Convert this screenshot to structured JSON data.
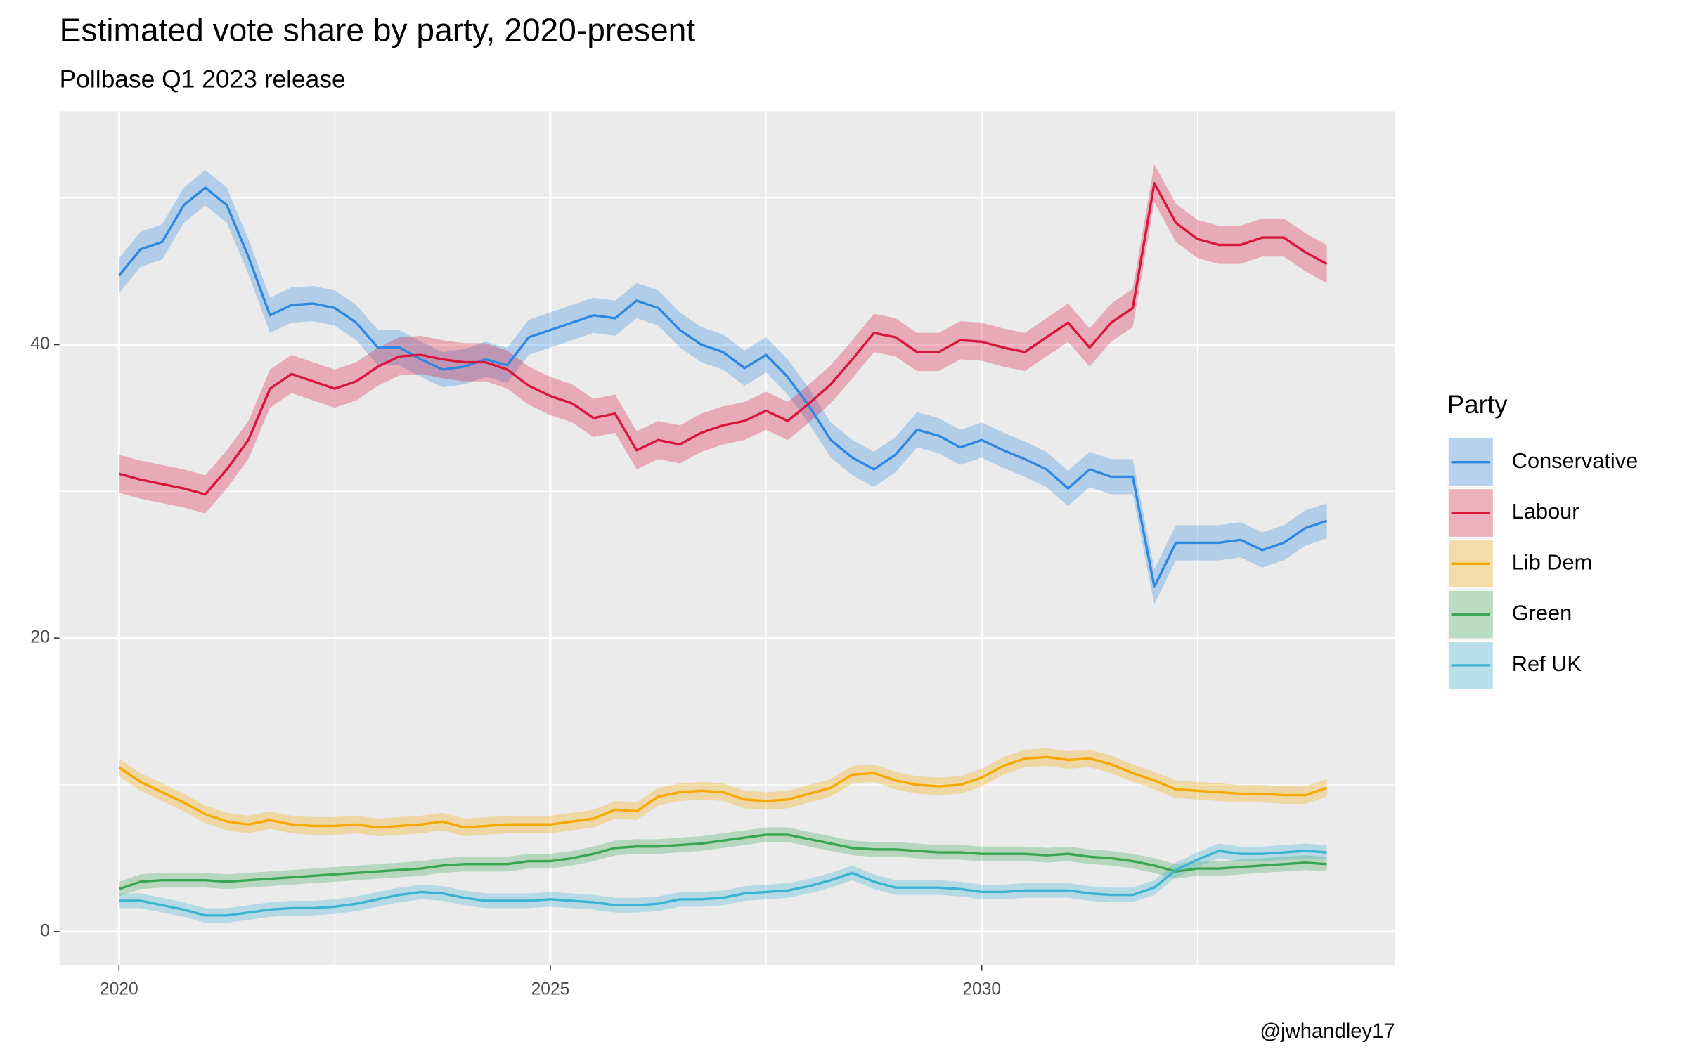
{
  "chart_data": {
    "type": "line",
    "title": "Estimated vote share by party, 2020-present",
    "subtitle": "Pollbase Q1 2023 release",
    "caption": "@jwhandley17",
    "legend_title": "Party",
    "legend": "right",
    "grid": true,
    "xlim": [
      2019.31,
      2034.79
    ],
    "xticks": [
      2020,
      2025,
      2030
    ],
    "ylim": [
      -2.3,
      55.9
    ],
    "yticks": [
      0,
      20,
      40
    ],
    "x": [
      2020,
      2020.25,
      2020.5,
      2020.75,
      2021,
      2021.25,
      2021.5,
      2021.75,
      2022,
      2022.25,
      2022.5,
      2022.75,
      2023,
      2023.25,
      2023.5,
      2023.75,
      2024,
      2024.25,
      2024.5,
      2024.75,
      2025,
      2025.25,
      2025.5,
      2025.75,
      2026,
      2026.25,
      2026.5,
      2026.75,
      2027,
      2027.25,
      2027.5,
      2027.75,
      2028,
      2028.25,
      2028.5,
      2028.75,
      2029,
      2029.25,
      2029.5,
      2029.75,
      2030,
      2030.25,
      2030.5,
      2030.75,
      2031,
      2031.25,
      2031.5,
      2031.75,
      2032,
      2032.25,
      2032.5,
      2032.75,
      2033,
      2033.25,
      2033.5,
      2033.75,
      2034
    ],
    "series": [
      {
        "name": "Conservative",
        "color": "#2e87e0",
        "band": 1.2,
        "values": [
          44.7,
          46.5,
          47,
          49.5,
          50.7,
          49.5,
          46,
          42,
          42.7,
          42.8,
          42.5,
          41.5,
          39.8,
          39.8,
          39,
          38.3,
          38.5,
          39,
          38.6,
          40.5,
          41,
          41.5,
          42,
          41.8,
          43,
          42.5,
          41,
          40,
          39.5,
          38.4,
          39.3,
          37.8,
          35.8,
          33.5,
          32.3,
          31.5,
          32.5,
          34.2,
          33.8,
          33,
          33.5,
          32.8,
          32.2,
          31.5,
          30.2,
          31.5,
          31,
          31,
          23.5,
          26.5,
          26.5,
          26.5,
          26.7,
          26,
          26.5,
          27.5,
          28
        ]
      },
      {
        "name": "Labour",
        "color": "#d9163c",
        "band": 1.3,
        "values": [
          31.2,
          30.8,
          30.5,
          30.2,
          29.8,
          31.5,
          33.5,
          37,
          38,
          37.5,
          37,
          37.5,
          38.5,
          39.2,
          39.3,
          39,
          38.8,
          38.8,
          38.3,
          37.2,
          36.5,
          36,
          35,
          35.3,
          32.8,
          33.5,
          33.2,
          34,
          34.5,
          34.8,
          35.5,
          34.8,
          36,
          37.3,
          39,
          40.8,
          40.5,
          39.5,
          39.5,
          40.3,
          40.2,
          39.8,
          39.5,
          40.5,
          41.5,
          39.8,
          41.5,
          42.5,
          51,
          48.3,
          47.2,
          46.8,
          46.8,
          47.3,
          47.3,
          46.3,
          45.5
        ]
      },
      {
        "name": "Lib Dem",
        "color": "#f5a800",
        "band": 0.6,
        "values": [
          11.2,
          10.2,
          9.5,
          8.8,
          8,
          7.5,
          7.3,
          7.6,
          7.3,
          7.2,
          7.2,
          7.3,
          7.1,
          7.2,
          7.3,
          7.5,
          7.1,
          7.2,
          7.3,
          7.3,
          7.3,
          7.5,
          7.7,
          8.3,
          8.2,
          9.2,
          9.5,
          9.6,
          9.5,
          9,
          8.9,
          9,
          9.4,
          9.8,
          10.7,
          10.8,
          10.3,
          10,
          9.9,
          10,
          10.5,
          11.3,
          11.8,
          11.9,
          11.7,
          11.8,
          11.4,
          10.8,
          10.3,
          9.7,
          9.6,
          9.5,
          9.4,
          9.4,
          9.3,
          9.3,
          9.8
        ]
      },
      {
        "name": "Green",
        "color": "#3aa655",
        "band": 0.5,
        "values": [
          2.9,
          3.4,
          3.5,
          3.5,
          3.5,
          3.4,
          3.5,
          3.6,
          3.7,
          3.8,
          3.9,
          4,
          4.1,
          4.2,
          4.3,
          4.5,
          4.6,
          4.6,
          4.6,
          4.8,
          4.8,
          5,
          5.3,
          5.7,
          5.8,
          5.8,
          5.9,
          6,
          6.2,
          6.4,
          6.6,
          6.6,
          6.3,
          6,
          5.7,
          5.6,
          5.6,
          5.5,
          5.4,
          5.4,
          5.3,
          5.3,
          5.3,
          5.2,
          5.3,
          5.1,
          5,
          4.8,
          4.5,
          4.1,
          4.3,
          4.3,
          4.4,
          4.5,
          4.6,
          4.7,
          4.6
        ]
      },
      {
        "name": "Ref UK",
        "color": "#3bb3d3",
        "band": 0.5,
        "values": [
          2.1,
          2.1,
          1.8,
          1.5,
          1.1,
          1.1,
          1.3,
          1.5,
          1.6,
          1.6,
          1.7,
          1.9,
          2.2,
          2.5,
          2.7,
          2.6,
          2.3,
          2.1,
          2.1,
          2.1,
          2.2,
          2.1,
          2,
          1.8,
          1.8,
          1.9,
          2.2,
          2.2,
          2.3,
          2.6,
          2.7,
          2.8,
          3.1,
          3.5,
          4,
          3.4,
          3,
          3,
          3,
          2.9,
          2.7,
          2.7,
          2.8,
          2.8,
          2.8,
          2.6,
          2.5,
          2.5,
          3,
          4.2,
          4.9,
          5.5,
          5.3,
          5.3,
          5.4,
          5.5,
          5.4
        ]
      }
    ]
  }
}
